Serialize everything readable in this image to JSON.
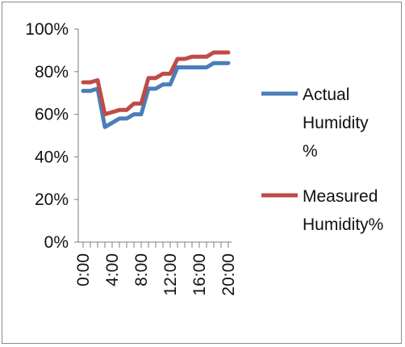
{
  "chart_data": {
    "type": "line",
    "title": "",
    "xlabel": "",
    "ylabel": "",
    "ylim": [
      0,
      100
    ],
    "grid": false,
    "legend_position": "right",
    "y_ticks": [
      "0%",
      "20%",
      "40%",
      "60%",
      "80%",
      "100%"
    ],
    "y_tick_values": [
      0,
      20,
      40,
      60,
      80,
      100
    ],
    "x_labels": [
      "0:00",
      "4:00",
      "8:00",
      "12:00",
      "16:00",
      "20:00"
    ],
    "x_label_indices": [
      0,
      4,
      8,
      12,
      16,
      20
    ],
    "x": [
      "0:00",
      "1:00",
      "2:00",
      "3:00",
      "4:00",
      "5:00",
      "6:00",
      "7:00",
      "8:00",
      "9:00",
      "10:00",
      "11:00",
      "12:00",
      "13:00",
      "14:00",
      "15:00",
      "16:00",
      "17:00",
      "18:00",
      "19:00",
      "20:00"
    ],
    "series": [
      {
        "name": "Actual Humidity %",
        "legend_lines": [
          "Actual",
          "Humidity",
          "%"
        ],
        "color": "#4a7ebb",
        "values": [
          71,
          71,
          72,
          54,
          56,
          58,
          58,
          60,
          60,
          72,
          72,
          74,
          74,
          82,
          82,
          82,
          82,
          82,
          84,
          84,
          84
        ]
      },
      {
        "name": "Measured Humidity%",
        "legend_lines": [
          "Measured",
          "Humidity%"
        ],
        "color": "#be4b48",
        "values": [
          75,
          75,
          76,
          60,
          61,
          62,
          62,
          65,
          65,
          77,
          77,
          79,
          79,
          86,
          86,
          87,
          87,
          87,
          89,
          89,
          89
        ]
      }
    ]
  }
}
